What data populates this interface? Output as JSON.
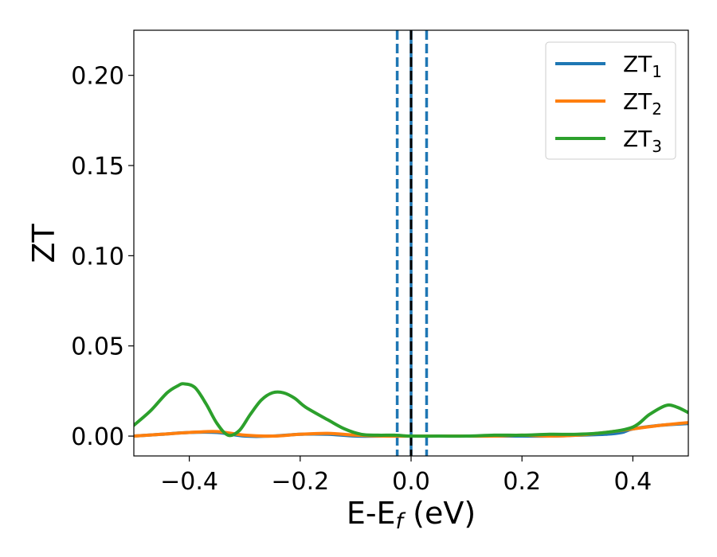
{
  "chart_data": {
    "type": "line",
    "xlabel": "E-E",
    "xlabel_sub": "f",
    "xlabel_unit": " (eV)",
    "ylabel": "ZT",
    "xlim": [
      -0.5,
      0.5
    ],
    "ylim": [
      -0.011,
      0.225
    ],
    "xticks": [
      -0.4,
      -0.2,
      0.0,
      0.2,
      0.4
    ],
    "xtick_labels": [
      "−0.4",
      "−0.2",
      "0.0",
      "0.2",
      "0.4"
    ],
    "yticks": [
      0.0,
      0.05,
      0.1,
      0.15,
      0.2
    ],
    "ytick_labels": [
      "0.00",
      "0.05",
      "0.10",
      "0.15",
      "0.20"
    ],
    "grid": false,
    "legend_position": "top-right",
    "vlines": [
      {
        "x": -0.025,
        "style": "dashed",
        "color": "#1f77b4"
      },
      {
        "x": 0.0,
        "style": "solid",
        "color": "#1f77b4"
      },
      {
        "x": 0.0,
        "style": "dashed",
        "color": "#000000"
      },
      {
        "x": 0.028,
        "style": "dashed",
        "color": "#1f77b4"
      }
    ],
    "series": [
      {
        "name": "ZT",
        "name_sub": "1",
        "color": "#1f77b4",
        "x": [
          -0.5,
          -0.45,
          -0.4,
          -0.35,
          -0.3,
          -0.25,
          -0.2,
          -0.15,
          -0.1,
          -0.05,
          0.0,
          0.05,
          0.1,
          0.15,
          0.2,
          0.25,
          0.3,
          0.35,
          0.38,
          0.4,
          0.45,
          0.5
        ],
        "values": [
          0.0,
          0.001,
          0.002,
          0.002,
          0.0,
          0.0,
          0.001,
          0.001,
          0.0,
          0.0,
          0.0,
          0.0,
          0.0,
          0.0,
          0.0,
          0.0,
          0.0005,
          0.001,
          0.002,
          0.004,
          0.006,
          0.007
        ]
      },
      {
        "name": "ZT",
        "name_sub": "2",
        "color": "#ff7f0e",
        "x": [
          -0.5,
          -0.45,
          -0.4,
          -0.35,
          -0.3,
          -0.25,
          -0.2,
          -0.15,
          -0.1,
          -0.05,
          0.0,
          0.05,
          0.1,
          0.15,
          0.2,
          0.25,
          0.3,
          0.35,
          0.4,
          0.45,
          0.5
        ],
        "values": [
          0.0,
          0.001,
          0.002,
          0.0025,
          0.0005,
          0.0,
          0.001,
          0.0015,
          0.0005,
          0.0,
          0.0,
          0.0,
          0.0,
          0.0,
          0.0005,
          0.0,
          0.0005,
          0.002,
          0.004,
          0.006,
          0.0075
        ]
      },
      {
        "name": "ZT",
        "name_sub": "3",
        "color": "#2ca02c",
        "x": [
          -0.5,
          -0.47,
          -0.44,
          -0.42,
          -0.41,
          -0.39,
          -0.37,
          -0.35,
          -0.33,
          -0.31,
          -0.29,
          -0.27,
          -0.25,
          -0.23,
          -0.21,
          -0.19,
          -0.15,
          -0.12,
          -0.09,
          -0.06,
          -0.03,
          0.0,
          0.05,
          0.1,
          0.15,
          0.2,
          0.25,
          0.3,
          0.35,
          0.4,
          0.43,
          0.46,
          0.48,
          0.5
        ],
        "values": [
          0.006,
          0.014,
          0.024,
          0.028,
          0.029,
          0.027,
          0.018,
          0.007,
          0.0005,
          0.003,
          0.012,
          0.02,
          0.024,
          0.024,
          0.021,
          0.016,
          0.009,
          0.004,
          0.001,
          0.0005,
          0.0005,
          0.0,
          0.0,
          0.0,
          0.0005,
          0.0005,
          0.001,
          0.001,
          0.002,
          0.005,
          0.012,
          0.017,
          0.016,
          0.013
        ]
      }
    ]
  }
}
